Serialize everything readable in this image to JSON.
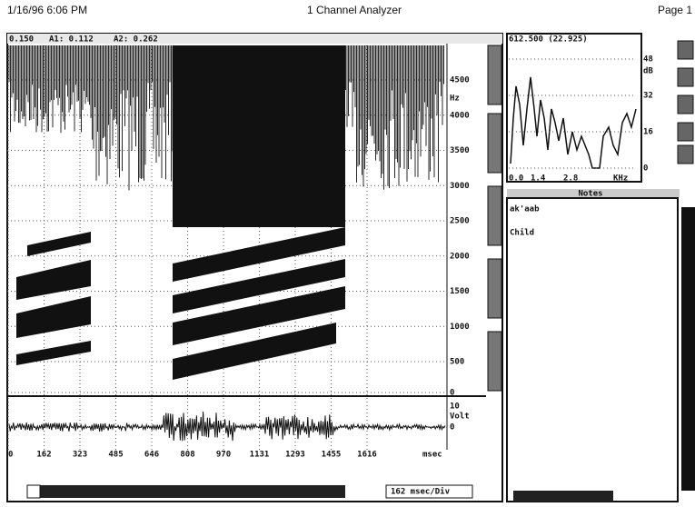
{
  "header": {
    "date": "1/16/96 6:06 PM",
    "title": "1 Channel Analyzer",
    "page": "Page 1"
  },
  "spectrogram": {
    "cursor": "0.150",
    "a1": "A1: 0.112",
    "a2": "A2: 0.262",
    "y_unit": "Hz",
    "y_ticks": [
      "4500",
      "4000",
      "3500",
      "3000",
      "2500",
      "2000",
      "1500",
      "1000",
      "500",
      "0"
    ]
  },
  "waveform": {
    "y_top": "10",
    "y_unit": "Volt",
    "y_zero": "0"
  },
  "time_axis": {
    "ticks": [
      "0",
      "162",
      "323",
      "485",
      "646",
      "808",
      "970",
      "1131",
      "1293",
      "1455",
      "1616"
    ],
    "unit": "msec",
    "scale": "162 msec/Div"
  },
  "spectrum": {
    "readout": "612.500 (22.925)",
    "y_ticks": [
      "48",
      "32",
      "16",
      "0"
    ],
    "y_unit": "dB",
    "x_ticks": [
      "0.0",
      "1.4",
      "2.8"
    ],
    "x_unit": "KHz"
  },
  "notes": {
    "title": "Notes",
    "lines": [
      "ak'aab",
      "Child"
    ]
  }
}
